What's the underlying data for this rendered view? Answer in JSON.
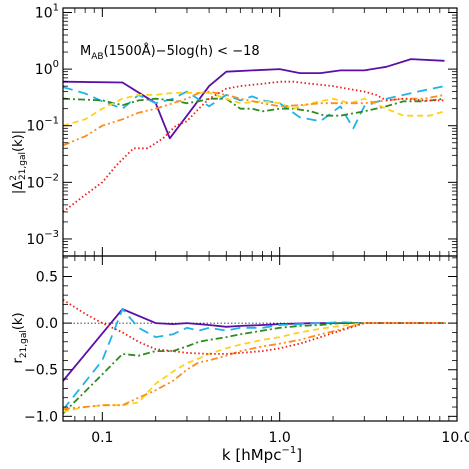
{
  "chart_data": {
    "type": "line",
    "xlabel_main": "k [hMpc",
    "xlabel_sup": "−1",
    "xlabel_close": "]",
    "x_scale": "log",
    "xlim": [
      0.06,
      10.0
    ],
    "x_ticks": [
      0.1,
      1.0,
      10.0
    ],
    "x_tick_labels": [
      "0.1",
      "1.0",
      "10.0"
    ],
    "panels": [
      {
        "id": "top",
        "ylabel": "|Δ²21,gal(k)|",
        "y_scale": "log",
        "ylim": [
          0.0005,
          12
        ],
        "y_ticks": [
          0.001,
          0.01,
          0.1,
          1,
          10
        ],
        "y_tick_labels": [
          {
            "base": "10",
            "exp": "−3"
          },
          {
            "base": "10",
            "exp": "−2"
          },
          {
            "base": "10",
            "exp": "−1"
          },
          {
            "base": "10",
            "exp": "0"
          },
          {
            "base": "10",
            "exp": "1"
          }
        ],
        "annotation": "MAB(1500Å)−5log(h) < −18",
        "series": [
          {
            "color": "#5b0fa8",
            "dash": "solid",
            "x": [
              0.06,
              0.13,
              0.2,
              0.24,
              0.3,
              0.4,
              0.5,
              0.7,
              1.0,
              1.3,
              1.7,
              2.2,
              3.0,
              4.0,
              5.5,
              8.5
            ],
            "y": [
              0.6,
              0.58,
              0.25,
              0.06,
              0.15,
              0.5,
              0.9,
              0.95,
              1.0,
              0.85,
              0.85,
              0.95,
              0.95,
              1.1,
              1.5,
              1.4
            ]
          },
          {
            "color": "#1fb4e8",
            "dash": "long-dash",
            "x": [
              0.06,
              0.08,
              0.1,
              0.13,
              0.16,
              0.2,
              0.25,
              0.3,
              0.4,
              0.5,
              0.6,
              0.7,
              0.8,
              1.0,
              1.3,
              1.7,
              2.2,
              2.6,
              3.0,
              4.0,
              5.0,
              6.0,
              8.5
            ],
            "y": [
              0.48,
              0.37,
              0.27,
              0.2,
              0.35,
              0.25,
              0.3,
              0.4,
              0.22,
              0.35,
              0.28,
              0.33,
              0.28,
              0.25,
              0.14,
              0.12,
              0.22,
              0.09,
              0.22,
              0.3,
              0.35,
              0.4,
              0.5
            ]
          },
          {
            "color": "#2e8b1e",
            "dash": "dash-dot",
            "x": [
              0.06,
              0.1,
              0.13,
              0.16,
              0.2,
              0.25,
              0.3,
              0.35,
              0.4,
              0.5,
              0.6,
              0.7,
              0.8,
              1.0,
              1.2,
              1.5,
              1.8,
              2.2,
              3.0,
              4.0,
              5.0,
              6.5,
              8.5
            ],
            "y": [
              0.3,
              0.28,
              0.23,
              0.28,
              0.3,
              0.28,
              0.25,
              0.27,
              0.3,
              0.3,
              0.2,
              0.2,
              0.18,
              0.2,
              0.2,
              0.18,
              0.15,
              0.15,
              0.18,
              0.22,
              0.27,
              0.27,
              0.3
            ]
          },
          {
            "color": "#ffd21a",
            "dash": "dashed",
            "x": [
              0.06,
              0.08,
              0.1,
              0.13,
              0.16,
              0.2,
              0.25,
              0.3,
              0.4,
              0.5,
              0.6,
              0.8,
              1.0,
              1.2,
              1.5,
              2.0,
              2.5,
              3.0,
              4.0,
              5.0,
              6.0,
              7.0,
              8.5
            ],
            "y": [
              0.1,
              0.13,
              0.2,
              0.3,
              0.35,
              0.35,
              0.38,
              0.38,
              0.38,
              0.3,
              0.25,
              0.27,
              0.25,
              0.2,
              0.25,
              0.3,
              0.25,
              0.3,
              0.2,
              0.15,
              0.15,
              0.15,
              0.18
            ]
          },
          {
            "color": "#ff8c1a",
            "dash": "dash-dot-dot",
            "x": [
              0.06,
              0.08,
              0.1,
              0.13,
              0.16,
              0.2,
              0.25,
              0.3,
              0.35,
              0.4,
              0.5,
              0.6,
              0.8,
              1.0,
              1.3,
              1.7,
              2.2,
              3.0,
              4.0,
              5.0,
              6.5,
              8.5
            ],
            "y": [
              0.045,
              0.065,
              0.1,
              0.13,
              0.17,
              0.2,
              0.25,
              0.3,
              0.38,
              0.4,
              0.35,
              0.3,
              0.25,
              0.22,
              0.23,
              0.25,
              0.25,
              0.25,
              0.28,
              0.3,
              0.3,
              0.35
            ]
          },
          {
            "color": "#ee1c1c",
            "dash": "dotted",
            "x": [
              0.06,
              0.08,
              0.1,
              0.12,
              0.15,
              0.18,
              0.22,
              0.26,
              0.3,
              0.35,
              0.4,
              0.5,
              0.6,
              0.8,
              1.0,
              1.2,
              1.5,
              2.0,
              2.4,
              3.0,
              3.5,
              4.0,
              5.0,
              6.5,
              8.5
            ],
            "y": [
              0.003,
              0.006,
              0.01,
              0.02,
              0.04,
              0.04,
              0.06,
              0.1,
              0.12,
              0.2,
              0.3,
              0.45,
              0.5,
              0.55,
              0.6,
              0.6,
              0.55,
              0.5,
              0.45,
              0.4,
              0.35,
              0.28,
              0.3,
              0.28,
              0.28
            ]
          }
        ]
      },
      {
        "id": "bottom",
        "ylabel": "r21,gal(k)",
        "y_scale": "linear",
        "ylim": [
          -1.05,
          0.72
        ],
        "y_ticks": [
          -1.0,
          -0.5,
          0.0,
          0.5
        ],
        "y_tick_labels": [
          "−1.0",
          "−0.5",
          "0.0",
          "0.5"
        ],
        "reference_line": 0.0,
        "series": [
          {
            "color": "#5b0fa8",
            "dash": "solid",
            "x": [
              0.06,
              0.13,
              0.2,
              0.25,
              0.3,
              0.4,
              0.5,
              0.6,
              0.8,
              1.0,
              1.5,
              2.0,
              3.0,
              5.0,
              8.5
            ],
            "y": [
              -0.62,
              0.15,
              0.0,
              -0.01,
              0.0,
              -0.02,
              -0.04,
              -0.03,
              -0.02,
              -0.01,
              0.0,
              0.0,
              0.0,
              0.0,
              0.0
            ]
          },
          {
            "color": "#1fb4e8",
            "dash": "long-dash",
            "x": [
              0.06,
              0.1,
              0.13,
              0.16,
              0.2,
              0.25,
              0.3,
              0.35,
              0.4,
              0.5,
              0.6,
              0.8,
              1.0,
              1.3,
              1.7,
              2.2,
              3.0,
              5.0,
              8.5
            ],
            "y": [
              -0.93,
              -0.4,
              0.15,
              -0.05,
              -0.15,
              -0.12,
              -0.05,
              -0.08,
              -0.05,
              -0.08,
              -0.05,
              -0.05,
              -0.02,
              -0.01,
              0.0,
              0.01,
              0.0,
              0.0,
              0.0
            ]
          },
          {
            "color": "#2e8b1e",
            "dash": "dash-dot",
            "x": [
              0.06,
              0.1,
              0.13,
              0.16,
              0.2,
              0.25,
              0.3,
              0.35,
              0.4,
              0.5,
              0.6,
              0.8,
              1.0,
              1.3,
              1.7,
              2.2,
              3.0,
              5.0,
              8.5
            ],
            "y": [
              -0.97,
              -0.55,
              -0.33,
              -0.35,
              -0.3,
              -0.3,
              -0.25,
              -0.2,
              -0.18,
              -0.15,
              -0.12,
              -0.08,
              -0.05,
              -0.03,
              -0.02,
              0.0,
              0.0,
              0.0,
              0.0
            ]
          },
          {
            "color": "#ffd21a",
            "dash": "dashed",
            "x": [
              0.06,
              0.08,
              0.1,
              0.13,
              0.16,
              0.2,
              0.25,
              0.3,
              0.35,
              0.4,
              0.5,
              0.6,
              0.8,
              1.0,
              1.3,
              1.7,
              2.2,
              3.0,
              4.0,
              6.0,
              8.5
            ],
            "y": [
              -0.95,
              -0.9,
              -0.88,
              -0.88,
              -0.85,
              -0.65,
              -0.52,
              -0.43,
              -0.38,
              -0.33,
              -0.27,
              -0.23,
              -0.18,
              -0.15,
              -0.1,
              -0.06,
              -0.03,
              0.0,
              0.0,
              0.0,
              0.0
            ]
          },
          {
            "color": "#ff8c1a",
            "dash": "dash-dot-dot",
            "x": [
              0.06,
              0.08,
              0.1,
              0.13,
              0.16,
              0.2,
              0.25,
              0.3,
              0.35,
              0.4,
              0.5,
              0.6,
              0.8,
              1.0,
              1.3,
              1.7,
              2.2,
              2.6,
              3.0,
              4.0,
              6.0,
              8.5
            ],
            "y": [
              -0.92,
              -0.9,
              -0.88,
              -0.88,
              -0.8,
              -0.72,
              -0.62,
              -0.5,
              -0.42,
              -0.4,
              -0.35,
              -0.3,
              -0.25,
              -0.22,
              -0.18,
              -0.12,
              -0.07,
              -0.03,
              0.0,
              0.0,
              0.0,
              0.0
            ]
          },
          {
            "color": "#ee1c1c",
            "dash": "dotted",
            "x": [
              0.06,
              0.08,
              0.1,
              0.13,
              0.16,
              0.2,
              0.25,
              0.3,
              0.4,
              0.5,
              0.6,
              0.8,
              1.0,
              1.3,
              1.7,
              2.2,
              2.6,
              3.0,
              4.0,
              6.0,
              8.5
            ],
            "y": [
              0.25,
              0.1,
              0.0,
              -0.1,
              -0.2,
              -0.28,
              -0.3,
              -0.32,
              -0.33,
              -0.33,
              -0.32,
              -0.3,
              -0.27,
              -0.22,
              -0.15,
              -0.08,
              -0.04,
              0.0,
              0.0,
              0.0,
              0.0
            ]
          }
        ]
      }
    ]
  }
}
